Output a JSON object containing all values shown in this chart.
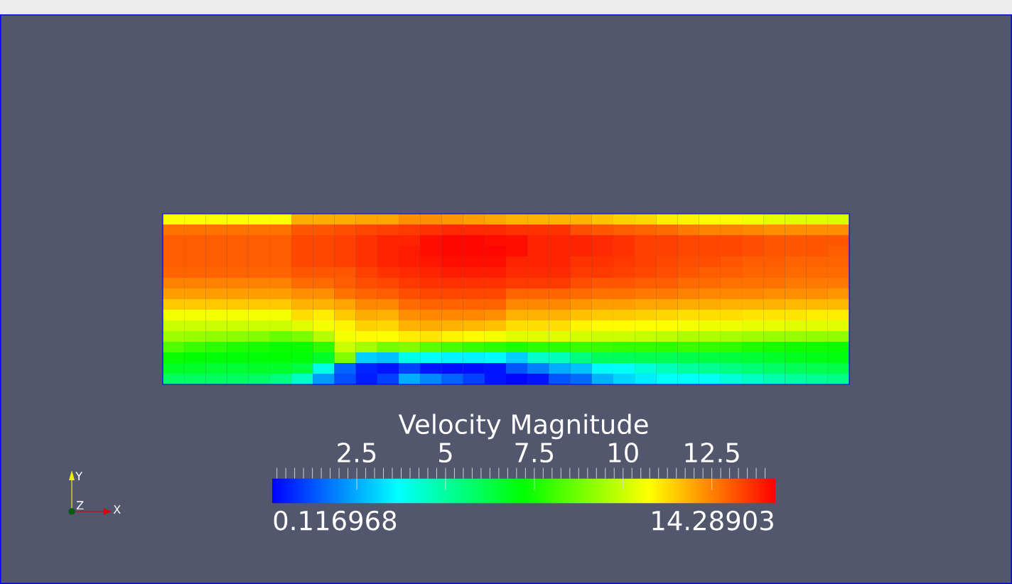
{
  "chart_data": {
    "type": "heatmap",
    "categories": [
      null,
      null,
      null,
      null,
      null,
      null,
      null,
      null,
      null,
      null,
      null,
      null,
      null,
      null,
      null,
      null,
      null,
      null,
      null,
      null,
      null,
      null,
      null,
      null,
      null,
      null,
      null,
      null,
      null,
      null,
      null,
      null
    ],
    "y_categories": [
      null,
      null,
      null,
      null,
      null,
      null,
      null,
      null,
      null,
      null,
      null,
      null,
      null,
      null,
      null,
      null
    ],
    "cells": [
      [
        10.7,
        10.7,
        10.7,
        10.7,
        10.7,
        10.7,
        11.9,
        11.9,
        11.9,
        12.0,
        12.0,
        12.3,
        12.3,
        12.2,
        12.1,
        12.0,
        11.8,
        11.8,
        11.8,
        11.8,
        11.6,
        11.4,
        11.3,
        11.0,
        10.9,
        10.8,
        10.8,
        10.6,
        10.4,
        10.3,
        10.3,
        10.2
      ],
      [
        12.7,
        12.7,
        12.7,
        12.7,
        12.7,
        12.7,
        13.1,
        13.1,
        13.2,
        13.3,
        13.4,
        13.5,
        13.6,
        13.7,
        13.7,
        13.7,
        13.6,
        13.6,
        13.6,
        13.2,
        13.1,
        13.0,
        12.9,
        12.8,
        12.6,
        12.5,
        12.5,
        12.4,
        12.3,
        12.3,
        12.3,
        12.3
      ],
      [
        13.0,
        13.0,
        13.0,
        13.0,
        13.0,
        13.0,
        13.3,
        13.3,
        13.4,
        13.6,
        13.8,
        13.8,
        14.1,
        14.2,
        14.2,
        14.1,
        14.1,
        13.8,
        13.8,
        13.8,
        13.7,
        13.6,
        13.4,
        13.4,
        13.3,
        13.3,
        13.3,
        13.2,
        13.1,
        13.1,
        13.1,
        13.1
      ],
      [
        13.0,
        13.0,
        13.0,
        13.0,
        13.0,
        13.0,
        13.3,
        13.3,
        13.4,
        13.6,
        13.8,
        13.9,
        14.1,
        14.2,
        14.2,
        14.2,
        14.1,
        13.8,
        13.8,
        13.8,
        13.7,
        13.6,
        13.4,
        13.4,
        13.3,
        13.3,
        13.3,
        13.2,
        13.1,
        13.1,
        13.1,
        13.0
      ],
      [
        13.0,
        13.0,
        13.0,
        13.0,
        13.0,
        13.0,
        13.3,
        13.3,
        13.4,
        13.6,
        13.8,
        13.9,
        14.0,
        14.1,
        14.1,
        14.1,
        13.8,
        13.8,
        13.8,
        13.6,
        13.6,
        13.5,
        13.4,
        13.3,
        13.2,
        13.2,
        13.1,
        13.0,
        13.0,
        12.9,
        12.9,
        12.9
      ],
      [
        12.9,
        12.9,
        12.9,
        12.9,
        12.9,
        12.9,
        13.1,
        13.1,
        13.1,
        13.4,
        13.6,
        13.7,
        13.8,
        13.9,
        13.9,
        13.9,
        13.7,
        13.7,
        13.7,
        13.5,
        13.5,
        13.4,
        13.3,
        13.2,
        13.1,
        13.0,
        13.0,
        12.9,
        12.9,
        12.8,
        12.8,
        12.8
      ],
      [
        12.5,
        12.5,
        12.5,
        12.5,
        12.5,
        12.5,
        12.8,
        12.8,
        13.0,
        13.2,
        13.3,
        13.5,
        13.6,
        13.6,
        13.6,
        13.6,
        13.5,
        13.5,
        13.5,
        13.2,
        13.1,
        13.1,
        13.0,
        13.0,
        12.8,
        12.8,
        12.7,
        12.7,
        12.7,
        12.6,
        12.6,
        12.6
      ],
      [
        12.1,
        12.1,
        12.1,
        12.1,
        12.1,
        12.1,
        12.3,
        12.3,
        12.7,
        12.9,
        13.0,
        13.2,
        13.3,
        13.3,
        13.3,
        13.3,
        12.9,
        12.9,
        12.9,
        12.8,
        12.7,
        12.7,
        12.6,
        12.6,
        12.5,
        12.4,
        12.4,
        12.4,
        12.3,
        12.3,
        12.3,
        12.2
      ],
      [
        11.5,
        11.5,
        11.5,
        11.5,
        11.5,
        11.5,
        11.8,
        11.8,
        12.0,
        12.4,
        12.4,
        12.8,
        12.9,
        12.9,
        12.9,
        12.9,
        12.4,
        12.4,
        12.4,
        12.2,
        12.1,
        12.1,
        12.0,
        12.0,
        11.9,
        11.9,
        11.8,
        11.8,
        11.8,
        11.7,
        11.7,
        11.7
      ],
      [
        10.6,
        10.6,
        10.6,
        10.6,
        10.6,
        10.6,
        11.2,
        11.0,
        11.5,
        11.9,
        11.8,
        12.3,
        12.4,
        12.4,
        12.4,
        12.3,
        11.8,
        11.8,
        11.8,
        11.6,
        11.5,
        11.5,
        11.4,
        11.3,
        11.2,
        11.2,
        11.2,
        11.1,
        11.1,
        11.1,
        11.0,
        11.0
      ],
      [
        10.0,
        10.0,
        10.0,
        10.0,
        10.0,
        10.0,
        10.3,
        10.6,
        10.9,
        11.4,
        11.3,
        11.8,
        11.9,
        11.8,
        11.7,
        11.6,
        11.2,
        11.2,
        11.2,
        10.9,
        10.8,
        10.8,
        10.7,
        10.7,
        10.6,
        10.5,
        10.5,
        10.4,
        10.4,
        10.3,
        10.3,
        10.3
      ],
      [
        9.4,
        9.3,
        9.2,
        9.1,
        9.0,
        8.6,
        8.9,
        9.7,
        10.6,
        10.8,
        10.7,
        11.0,
        11.1,
        10.9,
        10.8,
        10.6,
        10.3,
        10.3,
        10.3,
        10.1,
        10.0,
        10.0,
        9.9,
        9.8,
        9.6,
        9.6,
        9.5,
        9.4,
        9.3,
        9.3,
        9.2,
        9.2
      ],
      [
        8.3,
        8.0,
        7.8,
        7.6,
        7.5,
        7.3,
        7.3,
        7.8,
        10.0,
        9.5,
        8.8,
        9.0,
        8.5,
        8.2,
        8.0,
        7.8,
        7.6,
        7.8,
        7.8,
        8.0,
        8.0,
        7.9,
        7.9,
        7.8,
        8.0,
        7.9,
        7.8,
        7.6,
        7.5,
        7.4,
        7.4,
        7.3
      ],
      [
        7.3,
        7.2,
        7.1,
        7.1,
        7.1,
        7.2,
        7.1,
        6.7,
        9.0,
        3.0,
        2.8,
        4.0,
        3.8,
        3.5,
        3.5,
        3.6,
        3.0,
        4.4,
        4.6,
        5.5,
        6.0,
        6.0,
        6.1,
        6.1,
        6.2,
        6.3,
        6.4,
        6.5,
        6.6,
        6.8,
        6.9,
        7.0
      ],
      [
        6.7,
        6.6,
        6.5,
        6.5,
        6.6,
        6.6,
        6.3,
        4.0,
        1.5,
        0.6,
        0.4,
        1.0,
        0.4,
        0.3,
        0.3,
        0.4,
        1.3,
        1.9,
        2.5,
        2.8,
        3.6,
        3.8,
        4.2,
        4.6,
        5.0,
        5.2,
        5.4,
        5.6,
        5.8,
        6.0,
        6.1,
        6.2
      ],
      [
        5.9,
        5.9,
        5.9,
        5.9,
        5.8,
        5.5,
        4.5,
        2.3,
        1.2,
        0.5,
        1.0,
        2.5,
        2.0,
        1.5,
        1.0,
        0.4,
        0.2,
        0.4,
        1.3,
        1.6,
        2.6,
        3.1,
        3.4,
        3.7,
        3.7,
        3.8,
        4.2,
        4.5,
        4.8,
        5.0,
        5.2,
        5.3
      ]
    ],
    "clim": [
      0.116968,
      14.28903
    ],
    "cticks": [
      {
        "value": 0.25,
        "label": null
      },
      {
        "value": 0.5,
        "label": null
      },
      {
        "value": 0.75,
        "label": null
      },
      {
        "value": 1,
        "label": null
      },
      {
        "value": 1.25,
        "label": null
      },
      {
        "value": 1.5,
        "label": null
      },
      {
        "value": 1.75,
        "label": null
      },
      {
        "value": 2,
        "label": null
      },
      {
        "value": 2.25,
        "label": null
      },
      2.5,
      {
        "value": 2.75,
        "label": null
      },
      {
        "value": 3,
        "label": null
      },
      {
        "value": 3.25,
        "label": null
      },
      {
        "value": 3.5,
        "label": null
      },
      {
        "value": 3.75,
        "label": null
      },
      {
        "value": 4,
        "label": null
      },
      {
        "value": 4.25,
        "label": null
      },
      {
        "value": 4.5,
        "label": null
      },
      {
        "value": 4.75,
        "label": null
      },
      5,
      {
        "value": 5.25,
        "label": null
      },
      {
        "value": 5.5,
        "label": null
      },
      {
        "value": 5.75,
        "label": null
      },
      {
        "value": 6,
        "label": null
      },
      {
        "value": 6.25,
        "label": null
      },
      {
        "value": 6.5,
        "label": null
      },
      {
        "value": 6.75,
        "label": null
      },
      {
        "value": 7,
        "label": null
      },
      {
        "value": 7.25,
        "label": null
      },
      7.5,
      {
        "value": 7.75,
        "label": null
      },
      {
        "value": 8,
        "label": null
      },
      {
        "value": 8.25,
        "label": null
      },
      {
        "value": 8.5,
        "label": null
      },
      {
        "value": 8.75,
        "label": null
      },
      {
        "value": 9,
        "label": null
      },
      {
        "value": 9.25,
        "label": null
      },
      {
        "value": 9.5,
        "label": null
      },
      {
        "value": 9.75,
        "label": null
      },
      10,
      {
        "value": 10.25,
        "label": null
      },
      {
        "value": 10.5,
        "label": null
      },
      {
        "value": 10.75,
        "label": null
      },
      {
        "value": 11,
        "label": null
      },
      {
        "value": 11.25,
        "label": null
      },
      {
        "value": 11.5,
        "label": null
      },
      {
        "value": 11.75,
        "label": null
      },
      {
        "value": 12,
        "label": null
      },
      {
        "value": 12.25,
        "label": null
      },
      12.5,
      {
        "value": 12.75,
        "label": null
      },
      {
        "value": 13,
        "label": null
      },
      {
        "value": 13.25,
        "label": null
      },
      {
        "value": 13.5,
        "label": null
      },
      {
        "value": 13.75,
        "label": null
      },
      {
        "value": 14,
        "label": null
      }
    ],
    "clabel": "Velocity Magnitude",
    "tick_labels": false,
    "annotations": [
      "Y",
      "Z",
      "X",
      "0.116968",
      "14.28903"
    ]
  }
}
